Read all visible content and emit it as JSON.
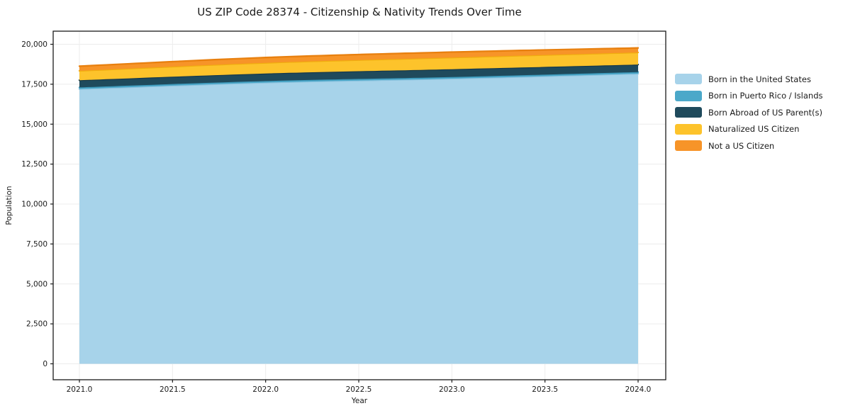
{
  "title": "US ZIP Code 28374 - Citizenship & Nativity Trends Over Time",
  "colors": {
    "background": "#ffffff",
    "text": "#1a1a1a",
    "grid": "#ececec",
    "frame": "#1a1a1a"
  },
  "chart_data": {
    "type": "area",
    "stacked": true,
    "title": "US ZIP Code 28374 - Citizenship & Nativity Trends Over Time",
    "xlabel": "Year",
    "ylabel": "Population",
    "x": [
      2021,
      2022,
      2023,
      2024
    ],
    "series": [
      {
        "name": "Born in the United States",
        "values": [
          17200,
          17600,
          17850,
          18160
        ],
        "fill": "#a7d3ea",
        "line": "#8cc3df"
      },
      {
        "name": "Born in Puerto Rico / Islands",
        "values": [
          100,
          100,
          100,
          100
        ],
        "fill": "#4ba8c9",
        "line": "#3d98ba"
      },
      {
        "name": "Born Abroad of US Parent(s)",
        "values": [
          450,
          470,
          490,
          470
        ],
        "fill": "#1f4a5c",
        "line": "#16384a"
      },
      {
        "name": "Naturalized US Citizen",
        "values": [
          590,
          670,
          730,
          760
        ],
        "fill": "#fdc32b",
        "line": "#f0ad0e"
      },
      {
        "name": "Not a US Citizen",
        "values": [
          290,
          330,
          340,
          280
        ],
        "fill": "#f79428",
        "line": "#e8800f"
      }
    ],
    "totals": [
      18630,
      19170,
      19510,
      19770
    ],
    "x_tick_values": [
      2021.0,
      2021.5,
      2022.0,
      2022.5,
      2023.0,
      2023.5,
      2024.0
    ],
    "x_tick_labels": [
      "2021.0",
      "2021.5",
      "2022.0",
      "2022.5",
      "2023.0",
      "2023.5",
      "2024.0"
    ],
    "y_tick_values": [
      0,
      2500,
      5000,
      7500,
      10000,
      12500,
      15000,
      17500,
      20000
    ],
    "y_tick_labels": [
      "0",
      "2,500",
      "5,000",
      "7,500",
      "10,000",
      "12,500",
      "15,000",
      "17,500",
      "20,000"
    ],
    "xlim": [
      2020.86,
      2024.14
    ],
    "ylim": [
      0,
      20000
    ],
    "grid": true,
    "legend_position": "right-outside"
  }
}
